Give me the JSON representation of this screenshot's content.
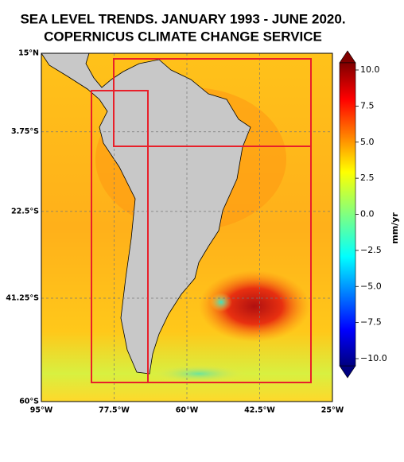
{
  "map": {
    "title": [
      "SEA LEVEL TRENDS. JANUARY 1993 - JUNE 2020.",
      "COPERNICUS CLIMATE CHANGE SERVICE"
    ],
    "xlim": [
      -95,
      -25
    ],
    "ylim": [
      -60,
      15
    ],
    "grid": true,
    "lon_ticks": [
      {
        "value": -95,
        "label": "95°W"
      },
      {
        "value": -77.5,
        "label": "77.5°W"
      },
      {
        "value": -60,
        "label": "60°W"
      },
      {
        "value": -42.5,
        "label": "42.5°W"
      },
      {
        "value": -25,
        "label": "25°W"
      }
    ],
    "lat_ticks": [
      {
        "value": 15,
        "label": "15°N"
      },
      {
        "value": -3.75,
        "label": "3.75°S"
      },
      {
        "value": -22.5,
        "label": "22.5°S"
      },
      {
        "value": -41.25,
        "label": "41.25°S"
      },
      {
        "value": -60,
        "label": "60°S"
      }
    ],
    "colorbar": {
      "label": "mm/yr",
      "lim": [
        -10.5,
        10.5
      ],
      "ticks": [
        {
          "value": 10,
          "label": "10.0"
        },
        {
          "value": 7.5,
          "label": "7.5"
        },
        {
          "value": 5,
          "label": "5.0"
        },
        {
          "value": 2.5,
          "label": "2.5"
        },
        {
          "value": 0,
          "label": "0.0"
        },
        {
          "value": -2.5,
          "label": "−2.5"
        },
        {
          "value": -5,
          "label": "−5.0"
        },
        {
          "value": -7.5,
          "label": "−7.5"
        },
        {
          "value": -10,
          "label": "−10.0"
        }
      ]
    }
  }
}
